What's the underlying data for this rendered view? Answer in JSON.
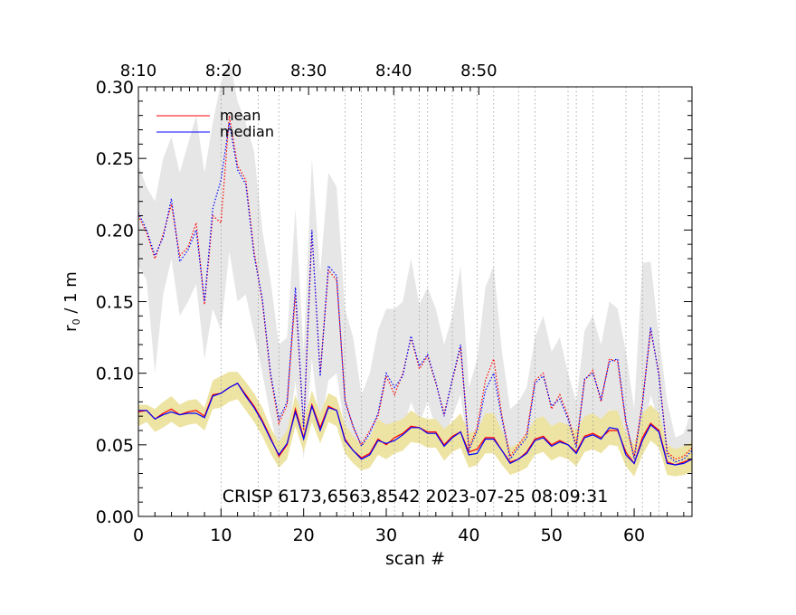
{
  "chart_data": {
    "type": "line",
    "title": "",
    "xlabel": "scan #",
    "ylabel_main": "r",
    "ylabel_sub": "0",
    "ylabel_rest": " / 1 m",
    "xlim": [
      0,
      67
    ],
    "ylim": [
      0,
      0.3
    ],
    "x_ticks": [
      0,
      10,
      20,
      30,
      40,
      50,
      60
    ],
    "x_tick_labels": [
      "0",
      "10",
      "20",
      "30",
      "40",
      "50",
      "60"
    ],
    "y_ticks": [
      0,
      0.05,
      0.1,
      0.15,
      0.2,
      0.25,
      0.3
    ],
    "y_tick_labels": [
      "0.00",
      "0.05",
      "0.10",
      "0.15",
      "0.20",
      "0.25",
      "0.30"
    ],
    "top_axis": {
      "scans": [
        0,
        10.3,
        20.6,
        30.9,
        41.2
      ],
      "labels": [
        "8:10",
        "8:20",
        "8:30",
        "8:40",
        "8:50"
      ]
    },
    "vertical_markers": [
      10,
      14.5,
      17,
      25,
      27,
      31,
      34,
      35,
      38,
      41,
      43,
      46,
      48,
      52,
      53,
      55,
      59,
      61,
      63
    ],
    "legend": [
      {
        "label": "mean",
        "color": "#ff0000"
      },
      {
        "label": "median",
        "color": "#0000ff"
      }
    ],
    "caption": "CRISP 6173,6563,8542 2023-07-25 08:09:31",
    "series": [
      {
        "name": "mean (lower, solid)",
        "color": "#ff0000",
        "style": "solid",
        "x": [
          0,
          1,
          2,
          3,
          4,
          5,
          6,
          7,
          8,
          9,
          10,
          11,
          12,
          13,
          14,
          15,
          16,
          17,
          18,
          19,
          20,
          21,
          22,
          23,
          24,
          25,
          26,
          27,
          28,
          29,
          30,
          31,
          32,
          33,
          34,
          35,
          36,
          37,
          38,
          39,
          40,
          41,
          42,
          43,
          44,
          45,
          46,
          47,
          48,
          49,
          50,
          51,
          52,
          53,
          54,
          55,
          56,
          57,
          58,
          59,
          60,
          61,
          62,
          63,
          64,
          65,
          66,
          67
        ],
        "values": [
          0.073,
          0.074,
          0.068,
          0.072,
          0.075,
          0.071,
          0.073,
          0.074,
          0.07,
          0.085,
          0.086,
          0.09,
          0.093,
          0.085,
          0.077,
          0.067,
          0.055,
          0.042,
          0.05,
          0.075,
          0.055,
          0.078,
          0.062,
          0.077,
          0.074,
          0.054,
          0.046,
          0.041,
          0.044,
          0.054,
          0.05,
          0.055,
          0.058,
          0.063,
          0.062,
          0.059,
          0.059,
          0.05,
          0.056,
          0.059,
          0.045,
          0.047,
          0.055,
          0.055,
          0.046,
          0.038,
          0.04,
          0.045,
          0.054,
          0.056,
          0.05,
          0.053,
          0.05,
          0.045,
          0.056,
          0.058,
          0.055,
          0.06,
          0.06,
          0.045,
          0.037,
          0.055,
          0.065,
          0.06,
          0.038,
          0.036,
          0.038,
          0.04
        ]
      },
      {
        "name": "median (lower, solid)",
        "color": "#0000ff",
        "style": "solid",
        "x": [
          0,
          1,
          2,
          3,
          4,
          5,
          6,
          7,
          8,
          9,
          10,
          11,
          12,
          13,
          14,
          15,
          16,
          17,
          18,
          19,
          20,
          21,
          22,
          23,
          24,
          25,
          26,
          27,
          28,
          29,
          30,
          31,
          32,
          33,
          34,
          35,
          36,
          37,
          38,
          39,
          40,
          41,
          42,
          43,
          44,
          45,
          46,
          47,
          48,
          49,
          50,
          51,
          52,
          53,
          54,
          55,
          56,
          57,
          58,
          59,
          60,
          61,
          62,
          63,
          64,
          65,
          66,
          67
        ],
        "values": [
          0.074,
          0.074,
          0.068,
          0.071,
          0.073,
          0.071,
          0.072,
          0.072,
          0.069,
          0.084,
          0.086,
          0.09,
          0.093,
          0.084,
          0.076,
          0.066,
          0.054,
          0.043,
          0.051,
          0.073,
          0.054,
          0.077,
          0.06,
          0.076,
          0.074,
          0.053,
          0.046,
          0.04,
          0.043,
          0.053,
          0.051,
          0.053,
          0.057,
          0.062,
          0.062,
          0.058,
          0.058,
          0.049,
          0.055,
          0.059,
          0.043,
          0.044,
          0.054,
          0.054,
          0.046,
          0.037,
          0.04,
          0.044,
          0.053,
          0.055,
          0.049,
          0.052,
          0.05,
          0.044,
          0.055,
          0.057,
          0.054,
          0.062,
          0.061,
          0.043,
          0.037,
          0.053,
          0.064,
          0.059,
          0.037,
          0.036,
          0.037,
          0.04
        ]
      },
      {
        "name": "mean (upper, dotted)",
        "color": "#ff0000",
        "style": "dotted",
        "x": [
          0,
          1,
          2,
          3,
          4,
          5,
          6,
          7,
          8,
          9,
          10,
          11,
          12,
          13,
          14,
          15,
          16,
          17,
          18,
          19,
          20,
          21,
          22,
          23,
          24,
          25,
          26,
          27,
          28,
          29,
          30,
          31,
          32,
          33,
          34,
          35,
          36,
          37,
          38,
          39,
          40,
          41,
          42,
          43,
          44,
          45,
          46,
          47,
          48,
          49,
          50,
          51,
          52,
          53,
          54,
          55,
          56,
          57,
          58,
          59,
          60,
          61,
          62,
          63,
          64,
          65,
          66,
          67
        ],
        "values": [
          0.21,
          0.198,
          0.18,
          0.197,
          0.218,
          0.182,
          0.188,
          0.205,
          0.148,
          0.21,
          0.205,
          0.28,
          0.245,
          0.235,
          0.185,
          0.15,
          0.098,
          0.065,
          0.078,
          0.155,
          0.06,
          0.198,
          0.1,
          0.172,
          0.165,
          0.082,
          0.062,
          0.05,
          0.06,
          0.07,
          0.098,
          0.085,
          0.1,
          0.125,
          0.103,
          0.112,
          0.093,
          0.072,
          0.095,
          0.118,
          0.048,
          0.062,
          0.095,
          0.11,
          0.07,
          0.042,
          0.05,
          0.058,
          0.095,
          0.1,
          0.075,
          0.085,
          0.07,
          0.05,
          0.095,
          0.102,
          0.08,
          0.11,
          0.108,
          0.065,
          0.042,
          0.08,
          0.13,
          0.1,
          0.045,
          0.04,
          0.042,
          0.048
        ]
      },
      {
        "name": "median (upper, dotted)",
        "color": "#0000ff",
        "style": "dotted",
        "x": [
          0,
          1,
          2,
          3,
          4,
          5,
          6,
          7,
          8,
          9,
          10,
          11,
          12,
          13,
          14,
          15,
          16,
          17,
          18,
          19,
          20,
          21,
          22,
          23,
          24,
          25,
          26,
          27,
          28,
          29,
          30,
          31,
          32,
          33,
          34,
          35,
          36,
          37,
          38,
          39,
          40,
          41,
          42,
          43,
          44,
          45,
          46,
          47,
          48,
          49,
          50,
          51,
          52,
          53,
          54,
          55,
          56,
          57,
          58,
          59,
          60,
          61,
          62,
          63,
          64,
          65,
          66,
          67
        ],
        "values": [
          0.212,
          0.2,
          0.182,
          0.195,
          0.222,
          0.178,
          0.186,
          0.2,
          0.15,
          0.215,
          0.235,
          0.275,
          0.242,
          0.232,
          0.182,
          0.152,
          0.1,
          0.068,
          0.08,
          0.16,
          0.062,
          0.2,
          0.098,
          0.175,
          0.168,
          0.08,
          0.063,
          0.049,
          0.058,
          0.072,
          0.1,
          0.09,
          0.098,
          0.126,
          0.105,
          0.113,
          0.094,
          0.07,
          0.096,
          0.12,
          0.046,
          0.06,
          0.088,
          0.1,
          0.068,
          0.04,
          0.048,
          0.055,
          0.093,
          0.098,
          0.077,
          0.082,
          0.068,
          0.048,
          0.096,
          0.1,
          0.082,
          0.108,
          0.11,
          0.067,
          0.04,
          0.078,
          0.132,
          0.098,
          0.043,
          0.038,
          0.04,
          0.046
        ]
      }
    ],
    "bands": [
      {
        "name": "upper spread (grey)",
        "color": "#e6e6e6",
        "x": [
          0,
          1,
          2,
          3,
          4,
          5,
          6,
          7,
          8,
          9,
          10,
          11,
          12,
          13,
          14,
          15,
          16,
          17,
          18,
          19,
          20,
          21,
          22,
          23,
          24,
          25,
          26,
          27,
          28,
          29,
          30,
          31,
          32,
          33,
          34,
          35,
          36,
          37,
          38,
          39,
          40,
          41,
          42,
          43,
          44,
          45,
          46,
          47,
          48,
          49,
          50,
          51,
          52,
          53,
          54,
          55,
          56,
          57,
          58,
          59,
          60,
          61,
          62,
          63,
          64,
          65,
          66,
          67
        ],
        "low": [
          0.175,
          0.165,
          0.1,
          0.155,
          0.18,
          0.14,
          0.15,
          0.162,
          0.11,
          0.145,
          0.13,
          0.185,
          0.15,
          0.155,
          0.128,
          0.1,
          0.07,
          0.045,
          0.05,
          0.095,
          0.04,
          0.11,
          0.062,
          0.095,
          0.1,
          0.06,
          0.05,
          0.04,
          0.045,
          0.05,
          0.06,
          0.05,
          0.06,
          0.08,
          0.065,
          0.08,
          0.062,
          0.055,
          0.07,
          0.085,
          0.042,
          0.045,
          0.06,
          0.065,
          0.05,
          0.038,
          0.04,
          0.045,
          0.06,
          0.065,
          0.05,
          0.06,
          0.05,
          0.04,
          0.06,
          0.07,
          0.055,
          0.075,
          0.07,
          0.045,
          0.038,
          0.05,
          0.085,
          0.065,
          0.04,
          0.036,
          0.038,
          0.04
        ],
        "high": [
          0.245,
          0.23,
          0.22,
          0.25,
          0.265,
          0.24,
          0.26,
          0.28,
          0.24,
          0.275,
          0.303,
          0.32,
          0.29,
          0.275,
          0.255,
          0.2,
          0.165,
          0.12,
          0.125,
          0.215,
          0.115,
          0.25,
          0.17,
          0.24,
          0.23,
          0.145,
          0.125,
          0.085,
          0.1,
          0.13,
          0.145,
          0.145,
          0.15,
          0.18,
          0.148,
          0.16,
          0.145,
          0.12,
          0.14,
          0.175,
          0.09,
          0.11,
          0.16,
          0.175,
          0.115,
          0.075,
          0.08,
          0.09,
          0.125,
          0.14,
          0.115,
          0.125,
          0.1,
          0.08,
          0.13,
          0.14,
          0.12,
          0.15,
          0.145,
          0.115,
          0.075,
          0.177,
          0.178,
          0.125,
          0.08,
          0.055,
          0.058,
          0.075
        ]
      },
      {
        "name": "lower spread (yellow)",
        "color": "#ede3a3",
        "x": [
          0,
          1,
          2,
          3,
          4,
          5,
          6,
          7,
          8,
          9,
          10,
          11,
          12,
          13,
          14,
          15,
          16,
          17,
          18,
          19,
          20,
          21,
          22,
          23,
          24,
          25,
          26,
          27,
          28,
          29,
          30,
          31,
          32,
          33,
          34,
          35,
          36,
          37,
          38,
          39,
          40,
          41,
          42,
          43,
          44,
          45,
          46,
          47,
          48,
          49,
          50,
          51,
          52,
          53,
          54,
          55,
          56,
          57,
          58,
          59,
          60,
          61,
          62,
          63,
          64,
          65,
          66,
          67
        ],
        "low": [
          0.063,
          0.066,
          0.059,
          0.062,
          0.066,
          0.062,
          0.064,
          0.065,
          0.06,
          0.075,
          0.076,
          0.08,
          0.082,
          0.074,
          0.066,
          0.056,
          0.044,
          0.034,
          0.04,
          0.063,
          0.045,
          0.066,
          0.051,
          0.066,
          0.063,
          0.044,
          0.037,
          0.032,
          0.034,
          0.043,
          0.04,
          0.044,
          0.046,
          0.052,
          0.051,
          0.048,
          0.048,
          0.039,
          0.045,
          0.048,
          0.034,
          0.036,
          0.044,
          0.044,
          0.036,
          0.029,
          0.031,
          0.034,
          0.043,
          0.045,
          0.039,
          0.042,
          0.04,
          0.035,
          0.045,
          0.047,
          0.044,
          0.05,
          0.049,
          0.035,
          0.028,
          0.043,
          0.053,
          0.048,
          0.029,
          0.028,
          0.029,
          0.031
        ],
        "high": [
          0.078,
          0.078,
          0.075,
          0.08,
          0.084,
          0.078,
          0.081,
          0.082,
          0.076,
          0.095,
          0.098,
          0.101,
          0.101,
          0.094,
          0.086,
          0.076,
          0.062,
          0.052,
          0.06,
          0.085,
          0.066,
          0.088,
          0.072,
          0.086,
          0.083,
          0.064,
          0.056,
          0.05,
          0.055,
          0.068,
          0.064,
          0.066,
          0.068,
          0.074,
          0.07,
          0.068,
          0.068,
          0.061,
          0.066,
          0.072,
          0.058,
          0.06,
          0.072,
          0.072,
          0.06,
          0.048,
          0.051,
          0.058,
          0.068,
          0.07,
          0.063,
          0.066,
          0.064,
          0.06,
          0.07,
          0.072,
          0.068,
          0.074,
          0.074,
          0.058,
          0.05,
          0.072,
          0.078,
          0.072,
          0.05,
          0.047,
          0.049,
          0.052
        ]
      }
    ]
  }
}
